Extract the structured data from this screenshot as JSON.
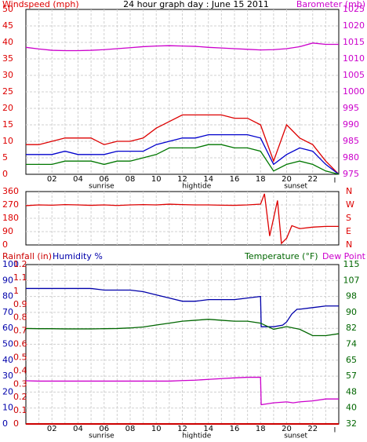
{
  "colors": {
    "wind": "#dd0000",
    "gust": "#dd0000",
    "avg": "#0000cc",
    "green": "#007700",
    "baro": "#cc00cc",
    "humidity": "#0000aa",
    "temperature": "#006600",
    "dew": "#cc00cc",
    "rain": "#cc0000",
    "grid": "#d0d0d0",
    "frame": "#000000"
  },
  "chart_data": [
    {
      "type": "line",
      "title": "24 hour graph day : June 15 2011",
      "left_axis_label": "Windspeed (mph)",
      "right_axis_label": "Barometer (mb)",
      "left_ticks": [
        "0",
        "5",
        "10",
        "15",
        "20",
        "25",
        "30",
        "35",
        "40",
        "45",
        "50"
      ],
      "right_ticks": [
        "975",
        "980",
        "985",
        "990",
        "995",
        "1000",
        "1005",
        "1010",
        "1015",
        "1020",
        "1025"
      ],
      "ylim_left": [
        0,
        50
      ],
      "ylim_right": [
        975,
        1025
      ],
      "x_ticks": [
        "02",
        "04",
        "06",
        "08",
        "10",
        "12",
        "14",
        "16",
        "18",
        "20",
        "22"
      ],
      "x_annotations": [
        {
          "label": "sunrise",
          "hour": 5.8
        },
        {
          "label": "hightide",
          "hour": 13.1
        },
        {
          "label": "sunset",
          "hour": 20.7
        }
      ],
      "xlim": [
        0,
        24
      ],
      "series": [
        {
          "key": "gust",
          "x": [
            0,
            1,
            2,
            3,
            4,
            5,
            6,
            7,
            8,
            9,
            10,
            11,
            12,
            13,
            14,
            15,
            16,
            17,
            18,
            19,
            20,
            21,
            22,
            23,
            24
          ],
          "values": [
            9,
            9,
            10,
            11,
            11,
            11,
            9,
            10,
            10,
            11,
            14,
            16,
            18,
            18,
            18,
            18,
            17,
            17,
            15,
            4,
            15,
            11,
            9,
            4,
            0
          ]
        },
        {
          "key": "avg",
          "x": [
            0,
            1,
            2,
            3,
            4,
            5,
            6,
            7,
            8,
            9,
            10,
            11,
            12,
            13,
            14,
            15,
            16,
            17,
            18,
            19,
            20,
            21,
            22,
            23,
            24
          ],
          "values": [
            6,
            6,
            6,
            7,
            6,
            6,
            6,
            7,
            7,
            7,
            9,
            10,
            11,
            11,
            12,
            12,
            12,
            12,
            11,
            3,
            6,
            8,
            7,
            3,
            0
          ]
        },
        {
          "key": "green",
          "x": [
            0,
            1,
            2,
            3,
            4,
            5,
            6,
            7,
            8,
            9,
            10,
            11,
            12,
            13,
            14,
            15,
            16,
            17,
            18,
            19,
            20,
            21,
            22,
            23,
            24
          ],
          "values": [
            3,
            3,
            3,
            4,
            4,
            4,
            3,
            4,
            4,
            5,
            6,
            8,
            8,
            8,
            9,
            9,
            8,
            8,
            7,
            1,
            3,
            4,
            3,
            1,
            0
          ]
        },
        {
          "key": "baro",
          "axis": "right",
          "x": [
            0,
            1,
            2,
            3,
            4,
            5,
            6,
            7,
            8,
            9,
            10,
            11,
            12,
            13,
            14,
            15,
            16,
            17,
            18,
            19,
            20,
            21,
            22,
            23,
            24
          ],
          "values": [
            1013.5,
            1013,
            1012.6,
            1012.5,
            1012.5,
            1012.6,
            1012.8,
            1013.1,
            1013.4,
            1013.7,
            1013.9,
            1014,
            1013.9,
            1013.8,
            1013.5,
            1013.3,
            1013.1,
            1012.9,
            1012.7,
            1012.8,
            1013.1,
            1013.7,
            1014.8,
            1014.4,
            1014.4
          ]
        }
      ]
    },
    {
      "type": "line",
      "left_ticks": [
        "360",
        "270",
        "180",
        "90",
        "0"
      ],
      "right_ticks": [
        "N",
        "W",
        "S",
        "E",
        "N"
      ],
      "ylim": [
        0,
        360
      ],
      "series": [
        {
          "key": "wind",
          "x": [
            0,
            1,
            2,
            3,
            4,
            5,
            6,
            7,
            8,
            9,
            10,
            11,
            12,
            13,
            14,
            15,
            16,
            17,
            18,
            18.3,
            18.7,
            19.3,
            19.6,
            20,
            20.4,
            21,
            22,
            23,
            24
          ],
          "values": [
            265,
            270,
            268,
            272,
            270,
            267,
            270,
            266,
            270,
            272,
            270,
            275,
            272,
            270,
            270,
            268,
            267,
            270,
            275,
            345,
            60,
            300,
            10,
            45,
            130,
            110,
            120,
            125,
            125
          ]
        }
      ]
    },
    {
      "type": "line",
      "left_axis_label": "Rainfall (in)",
      "humidity_label": "Humidity %",
      "right_axis_label": "Temperature (°F)",
      "dew_label": "Dew Point",
      "rain_ticks": [
        "0",
        "0.1",
        "0.2",
        "0.3",
        "0.4",
        "0.5",
        "0.6",
        "0.7",
        "0.8",
        "0.9",
        "1",
        "1.1",
        "1.2"
      ],
      "humidity_ticks": [
        "0",
        "10",
        "20",
        "30",
        "40",
        "50",
        "60",
        "70",
        "80",
        "90",
        "100"
      ],
      "temp_ticks": [
        "32",
        "40",
        "48",
        "57",
        "65",
        "74",
        "82",
        "90",
        "98",
        "107",
        "115"
      ],
      "ylim_humidity": [
        0,
        100
      ],
      "ylim_temp": [
        32,
        115
      ],
      "x_ticks": [
        "02",
        "04",
        "06",
        "08",
        "10",
        "12",
        "14",
        "16",
        "18",
        "20",
        "22"
      ],
      "x_annotations": [
        {
          "label": "sunrise",
          "hour": 5.8
        },
        {
          "label": "hightide",
          "hour": 13.1
        },
        {
          "label": "sunset",
          "hour": 20.7
        }
      ],
      "xlim": [
        0,
        24
      ],
      "series": [
        {
          "key": "humidity",
          "x": [
            0,
            1,
            2,
            3,
            4,
            5,
            6,
            7,
            8,
            9,
            10,
            11,
            12,
            13,
            14,
            15,
            16,
            17,
            18,
            18.05,
            19,
            19.7,
            20,
            20.4,
            20.8,
            21,
            22,
            23,
            24
          ],
          "values": [
            85,
            85,
            85,
            85,
            85,
            85,
            84,
            84,
            84,
            83,
            81,
            79,
            77,
            77,
            78,
            78,
            78,
            79,
            80,
            61,
            61,
            62,
            64,
            69,
            72,
            72,
            73,
            74,
            74
          ]
        },
        {
          "key": "temperature",
          "x": [
            0,
            1,
            2,
            3,
            4,
            5,
            6,
            7,
            8,
            9,
            10,
            11,
            12,
            13,
            14,
            15,
            16,
            17,
            18,
            19,
            20,
            21,
            22,
            23,
            24
          ],
          "values": [
            81.7,
            81.6,
            81.6,
            81.5,
            81.5,
            81.5,
            81.6,
            81.7,
            82,
            82.5,
            83.5,
            84.5,
            85.5,
            86,
            86.5,
            86,
            85.5,
            85.5,
            84.5,
            81.3,
            82.7,
            81.3,
            78,
            78,
            79
          ]
        },
        {
          "key": "dew",
          "x": [
            0,
            1,
            2,
            3,
            4,
            5,
            6,
            7,
            8,
            9,
            10,
            11,
            12,
            13,
            14,
            15,
            16,
            17,
            18,
            18.05,
            19,
            20,
            20.5,
            21,
            22,
            23,
            24
          ],
          "values": [
            54.5,
            54.3,
            54.3,
            54.3,
            54.3,
            54.3,
            54.3,
            54.3,
            54.3,
            54.3,
            54.3,
            54.3,
            54.6,
            54.8,
            55.2,
            55.6,
            56,
            56.3,
            56.3,
            42,
            43,
            43.5,
            43,
            43.5,
            44,
            45,
            45
          ]
        },
        {
          "key": "rain",
          "x": [
            0,
            24
          ],
          "values": [
            0,
            0
          ]
        }
      ]
    }
  ]
}
